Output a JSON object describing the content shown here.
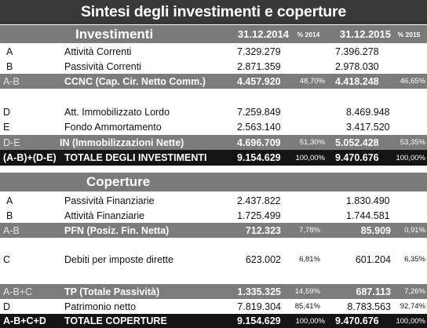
{
  "title": "Sintesi degli investimenti e coperture",
  "headers": {
    "investimenti": "Investimenti",
    "coperture": "Coperture",
    "date_2014": "31.12.2014",
    "pct_2014": "% 2014",
    "date_2015": "31.12.2015",
    "pct_2015": "% 2015"
  },
  "investimenti": {
    "a": {
      "code": "A",
      "desc": "Attività Correnti",
      "v2014": "7.329.279",
      "v2015": "7.396.278"
    },
    "b": {
      "code": "B",
      "desc": "Passività Correnti",
      "v2014": "2.871.359",
      "v2015": "2.978.030"
    },
    "ccnc": {
      "code": "A-B",
      "desc": "CCNC (Cap. Cir. Netto Comm.)",
      "v2014": "4.457.920",
      "p2014": "48,70%",
      "v2015": "4.418.248",
      "p2015": "46,65%"
    },
    "d": {
      "code": "D",
      "desc": "Att. Immobilizzato Lordo",
      "v2014": "7.259.849",
      "v2015": "8.469.948"
    },
    "e": {
      "code": "E",
      "desc": "Fondo Ammortamento",
      "v2014": "2.563.140",
      "v2015": "3.417.520"
    },
    "in": {
      "code": "D-E",
      "desc": "IN (Immobilizzazioni Nette)",
      "v2014": "4.696.709",
      "p2014": "51,30%",
      "v2015": "5.052.428",
      "p2015": "53,35%"
    },
    "total": {
      "code": "(A-B)+(D-E)",
      "desc": "TOTALE DEGLI INVESTIMENTI",
      "v2014": "9.154.629",
      "p2014": "100,00%",
      "v2015": "9.470.676",
      "p2015": "100,00%"
    }
  },
  "coperture": {
    "a": {
      "code": "A",
      "desc": "Passività Finanziarie",
      "v2014": "2.437.822",
      "v2015": "1.830.490"
    },
    "b": {
      "code": "B",
      "desc": "Attività Finanziarie",
      "v2014": "1.725.499",
      "v2015": "1.744.581"
    },
    "pfn": {
      "code": "A-B",
      "desc": "PFN (Posiz. Fin. Netta)",
      "v2014": "712.323",
      "p2014": "7,78%",
      "v2015": "85.909",
      "p2015": "0,91%"
    },
    "c": {
      "code": "C",
      "desc": "Debiti per imposte dirette",
      "v2014": "623.002",
      "p2014": "6,81%",
      "v2015": "601.204",
      "p2015": "6,35%"
    },
    "tp": {
      "code": "A-B+C",
      "desc": "TP (Totale Passività)",
      "v2014": "1.335.325",
      "p2014": "14,59%",
      "v2015": "687.113",
      "p2015": "7,26%"
    },
    "d": {
      "code": "D",
      "desc": "Patrimonio netto",
      "v2014": "7.819.304",
      "p2014": "85,41%",
      "v2015": "8.783.563",
      "p2015": "92,74%"
    },
    "total": {
      "code": "A-B+C+D",
      "desc": "TOTALE COPERTURE",
      "v2014": "9.154.629",
      "p2014": "100,00%",
      "v2015": "9.470.676",
      "p2015": "100,00%"
    }
  }
}
